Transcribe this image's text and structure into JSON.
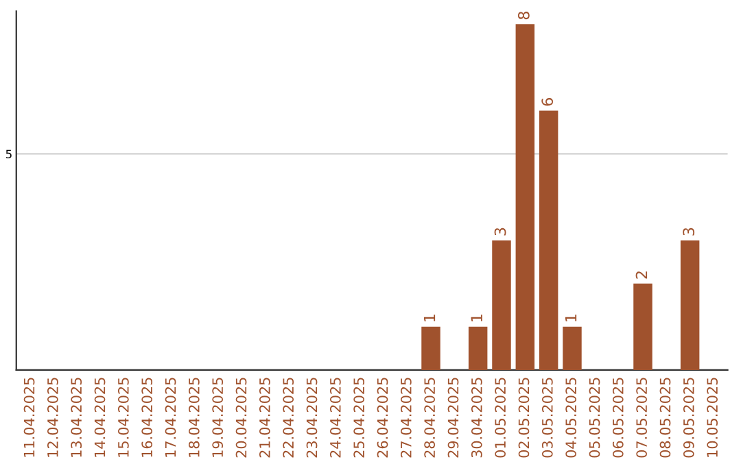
{
  "chart_data": {
    "type": "bar",
    "categories": [
      "11.04.2025",
      "12.04.2025",
      "13.04.2025",
      "14.04.2025",
      "15.04.2025",
      "16.04.2025",
      "17.04.2025",
      "18.04.2025",
      "19.04.2025",
      "20.04.2025",
      "21.04.2025",
      "22.04.2025",
      "23.04.2025",
      "24.04.2025",
      "25.04.2025",
      "26.04.2025",
      "27.04.2025",
      "28.04.2025",
      "29.04.2025",
      "30.04.2025",
      "01.05.2025",
      "02.05.2025",
      "03.05.2025",
      "04.05.2025",
      "05.05.2025",
      "06.05.2025",
      "07.05.2025",
      "08.05.2025",
      "09.05.2025",
      "10.05.2025"
    ],
    "values": [
      null,
      null,
      null,
      null,
      null,
      null,
      null,
      null,
      null,
      null,
      null,
      null,
      null,
      null,
      null,
      null,
      null,
      1,
      null,
      1,
      3,
      8,
      6,
      1,
      null,
      null,
      2,
      null,
      3,
      null
    ],
    "color": "#a0522d",
    "ylim": [
      0,
      8.3
    ],
    "yticks": [
      5
    ],
    "grid": "y",
    "data_labels": true
  }
}
